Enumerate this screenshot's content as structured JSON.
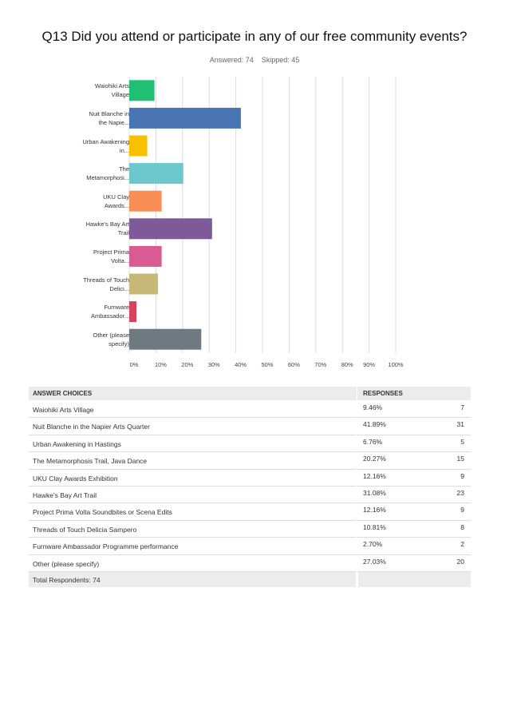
{
  "title": "Q13 Did you attend or participate in any of our free community events?",
  "answered": "Answered: 74",
  "skipped": "Skipped: 45",
  "chart_data": {
    "type": "bar",
    "orientation": "horizontal",
    "categories": [
      "Waiohiki Arts Village",
      "Nuit Blanche in the Napie...",
      "Urban Awakening in...",
      "The Metamorphosi...",
      "UKU Clay Awards...",
      "Hawke's Bay Art Trail",
      "Project Prima Volta...",
      "Threads of Touch Delici...",
      "Furnware Ambassador...",
      "Other (please specify)"
    ],
    "values": [
      9.46,
      41.89,
      6.76,
      20.27,
      12.16,
      31.08,
      12.16,
      10.81,
      2.7,
      27.03
    ],
    "colors": [
      "#21bf73",
      "#4a75b5",
      "#f7c100",
      "#6cc8cc",
      "#f98f54",
      "#7e5a9b",
      "#d95b93",
      "#c8b878",
      "#d6435a",
      "#6f7a80"
    ],
    "xlim": [
      0,
      100
    ],
    "xticks": [
      {
        "value": 0,
        "label": "0%"
      },
      {
        "value": 10,
        "label": "10%"
      },
      {
        "value": 20,
        "label": "20%"
      },
      {
        "value": 30,
        "label": "30%"
      },
      {
        "value": 40,
        "label": "40%"
      },
      {
        "value": 50,
        "label": "50%"
      },
      {
        "value": 60,
        "label": "60%"
      },
      {
        "value": 70,
        "label": "70%"
      },
      {
        "value": 80,
        "label": "80%"
      },
      {
        "value": 90,
        "label": "90%"
      },
      {
        "value": 100,
        "label": "100%"
      }
    ],
    "grid": true
  },
  "table": {
    "headers": [
      "ANSWER CHOICES",
      "RESPONSES"
    ],
    "rows": [
      [
        "Waiohiki Arts Village",
        "9.46%",
        7
      ],
      [
        "Nuit Blanche in the Napier Arts Quarter",
        "41.89%",
        31
      ],
      [
        "Urban Awakening in Hastings",
        "6.76%",
        5
      ],
      [
        "The Metamorphosis Trail, Java Dance",
        "20.27%",
        15
      ],
      [
        "UKU Clay Awards Exhibition",
        "12.16%",
        9
      ],
      [
        "Hawke's Bay Art Trail",
        "31.08%",
        23
      ],
      [
        "Project Prima Volta Soundbites or Scena Edits",
        "12.16%",
        9
      ],
      [
        "Threads of Touch Delicia Sampero",
        "10.81%",
        8
      ],
      [
        "Furnware Ambassador Programme performance",
        "2.70%",
        2
      ],
      [
        "Other (please specify)",
        "27.03%",
        20
      ]
    ],
    "total": "Total Respondents: 74"
  }
}
